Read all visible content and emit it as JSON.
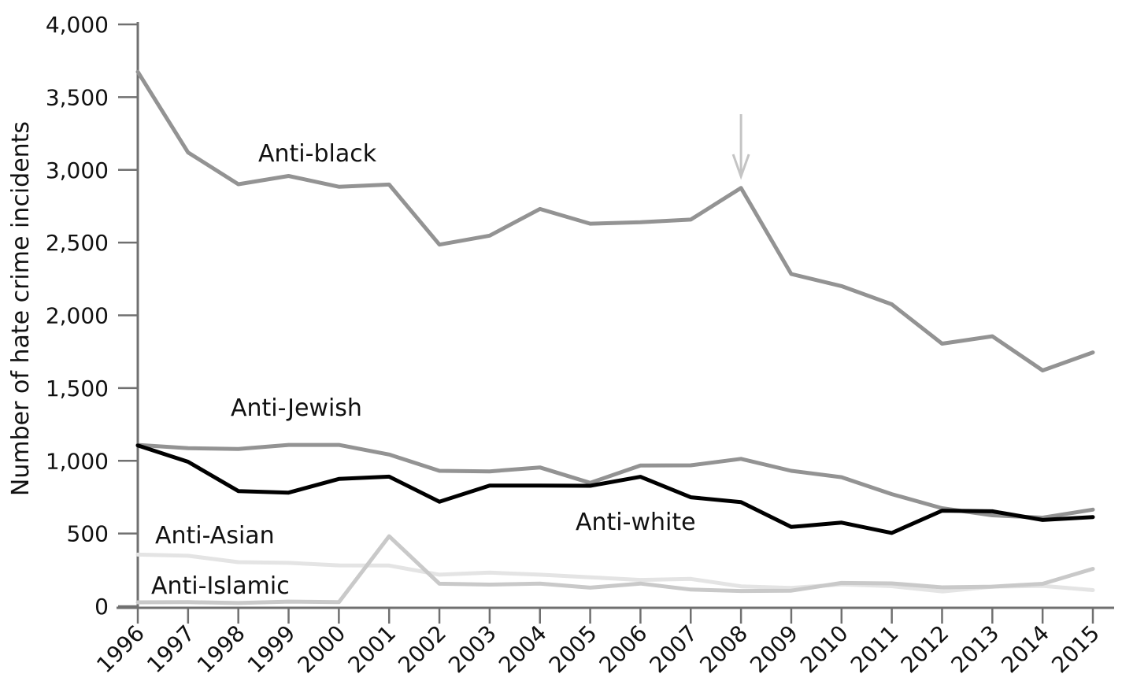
{
  "chart_data": {
    "type": "line",
    "title": "",
    "xlabel": "",
    "ylabel": "Number of hate crime incidents",
    "x": [
      1996,
      1997,
      1998,
      1999,
      2000,
      2001,
      2002,
      2003,
      2004,
      2005,
      2006,
      2007,
      2008,
      2009,
      2010,
      2011,
      2012,
      2013,
      2014,
      2015
    ],
    "x_tick_labels": [
      "1996",
      "1997",
      "1998",
      "1999",
      "2000",
      "2001",
      "2002",
      "2003",
      "2004",
      "2005",
      "2006",
      "2007",
      "2008",
      "2009",
      "2010",
      "2011",
      "2012",
      "2013",
      "2014",
      "2015"
    ],
    "y_tick_labels": [
      "0",
      "500",
      "1,000",
      "1,500",
      "2,000",
      "2,500",
      "3,000",
      "3,500",
      "4,000"
    ],
    "y_ticks": [
      0,
      500,
      1000,
      1500,
      2000,
      2500,
      3000,
      3500,
      4000
    ],
    "ylim": [
      0,
      4000
    ],
    "grid": false,
    "legend": "none (inline labels)",
    "annotation": "downward arrow above 2008 Anti-black peak",
    "annotation_x": 2008,
    "series": [
      {
        "name": "Anti-black",
        "color": "#939393",
        "values": [
          3674,
          3120,
          2901,
          2958,
          2884,
          2899,
          2486,
          2548,
          2731,
          2630,
          2640,
          2658,
          2876,
          2284,
          2201,
          2076,
          1805,
          1856,
          1621,
          1745
        ]
      },
      {
        "name": "Anti-Jewish",
        "color": "#939393",
        "values": [
          1109,
          1087,
          1081,
          1109,
          1109,
          1043,
          931,
          927,
          954,
          848,
          967,
          969,
          1013,
          931,
          887,
          771,
          674,
          625,
          609,
          664
        ]
      },
      {
        "name": "Anti-white",
        "color": "#000000",
        "values": [
          1106,
          993,
          792,
          781,
          875,
          891,
          719,
          830,
          829,
          828,
          890,
          749,
          716,
          545,
          575,
          504,
          657,
          653,
          593,
          613
        ]
      },
      {
        "name": "Anti-Asian",
        "color": "#e4e4e4",
        "values": [
          355,
          347,
          303,
          298,
          281,
          280,
          217,
          231,
          217,
          199,
          181,
          188,
          137,
          126,
          150,
          138,
          102,
          135,
          140,
          111
        ]
      },
      {
        "name": "Anti-Islamic",
        "color": "#c9c9c9",
        "values": [
          27,
          28,
          22,
          32,
          28,
          481,
          155,
          149,
          156,
          128,
          156,
          115,
          105,
          107,
          160,
          157,
          130,
          135,
          154,
          257
        ]
      }
    ]
  }
}
